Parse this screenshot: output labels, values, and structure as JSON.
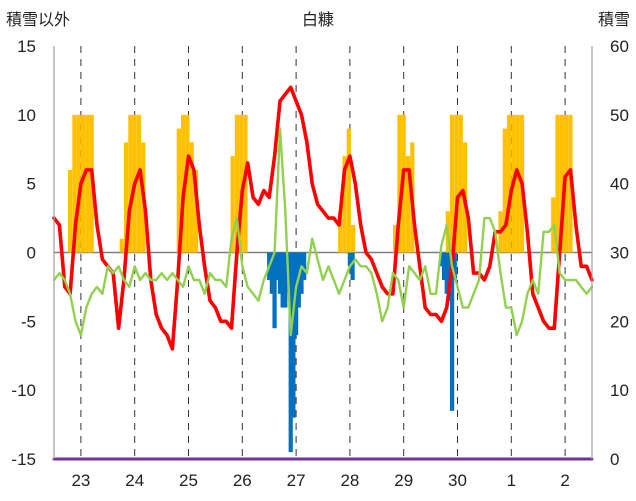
{
  "chart_data": {
    "type": "line",
    "title": "白糠",
    "y_left_label": "積雪以外",
    "y_right_label": "積雪",
    "y_left_ticks": [
      "15",
      "10",
      "5",
      "0",
      "-5",
      "-10",
      "-15"
    ],
    "y_right_ticks": [
      "60",
      "50",
      "40",
      "30",
      "20",
      "10",
      "0"
    ],
    "ylim_left": [
      -15,
      15
    ],
    "ylim_right": [
      0,
      60
    ],
    "x_ticks": [
      "23",
      "24",
      "25",
      "26",
      "27",
      "28",
      "29",
      "30",
      "1",
      "2"
    ],
    "xlim": [
      22.5,
      32.5
    ],
    "grid": "vertical dashed at day centers",
    "legend": "none",
    "series": [
      {
        "kind": "bar",
        "axis": "left",
        "color": "#FFC000",
        "x": [
          22.8,
          22.88,
          22.96,
          23.04,
          23.12,
          23.2,
          23.76,
          23.84,
          23.92,
          24.0,
          24.08,
          24.16,
          24.82,
          24.9,
          24.98,
          25.06,
          25.14,
          25.82,
          25.9,
          25.98,
          26.06,
          27.82,
          27.9,
          27.98,
          28.06,
          28.84,
          28.92,
          29.0,
          29.08,
          29.16,
          29.82,
          29.9,
          29.98,
          30.06,
          30.14,
          30.8,
          30.88,
          30.96,
          31.04,
          31.12,
          31.2,
          31.78,
          31.86,
          31.94,
          32.02,
          32.1
        ],
        "values": [
          6,
          10,
          10,
          10,
          10,
          10,
          1,
          8,
          10,
          10,
          10,
          8,
          9,
          10,
          10,
          8,
          6,
          7,
          10,
          10,
          10,
          3,
          7,
          9,
          2,
          2,
          10,
          10,
          7,
          8,
          3,
          10,
          10,
          10,
          8,
          3,
          9,
          10,
          10,
          10,
          10,
          4,
          10,
          10,
          10,
          10
        ]
      },
      {
        "kind": "bar",
        "axis": "left",
        "color": "#0070C0",
        "x": [
          26.5,
          26.55,
          26.6,
          26.65,
          26.7,
          26.75,
          26.8,
          26.85,
          26.9,
          26.95,
          27.0,
          27.05,
          27.1,
          27.15,
          28.0,
          28.05,
          29.7,
          29.75,
          29.8,
          29.85,
          29.9,
          29.95
        ],
        "values": [
          -2,
          -3,
          -5.5,
          -2,
          -3,
          -4,
          -4,
          -2,
          -14.5,
          -12,
          -6,
          -4,
          -3,
          -2,
          -1,
          -2,
          -1,
          -2,
          -3,
          -3.5,
          -11.5,
          -2
        ]
      },
      {
        "kind": "line",
        "axis": "left",
        "color": "#FF0000",
        "x": [
          22.5,
          22.6,
          22.7,
          22.8,
          22.9,
          23.0,
          23.1,
          23.2,
          23.3,
          23.4,
          23.5,
          23.6,
          23.7,
          23.8,
          23.9,
          24.0,
          24.1,
          24.2,
          24.3,
          24.4,
          24.5,
          24.6,
          24.7,
          24.8,
          24.9,
          25.0,
          25.1,
          25.2,
          25.3,
          25.4,
          25.5,
          25.6,
          25.7,
          25.8,
          25.9,
          26.0,
          26.1,
          26.2,
          26.3,
          26.4,
          26.5,
          26.6,
          26.7,
          26.8,
          26.9,
          27.0,
          27.1,
          27.2,
          27.3,
          27.4,
          27.5,
          27.6,
          27.7,
          27.8,
          27.9,
          28.0,
          28.1,
          28.2,
          28.3,
          28.4,
          28.5,
          28.6,
          28.7,
          28.8,
          28.9,
          29.0,
          29.1,
          29.2,
          29.3,
          29.4,
          29.5,
          29.6,
          29.7,
          29.8,
          29.9,
          30.0,
          30.1,
          30.2,
          30.3,
          30.4,
          30.5,
          30.6,
          30.7,
          30.8,
          30.9,
          31.0,
          31.1,
          31.2,
          31.3,
          31.4,
          31.5,
          31.6,
          31.7,
          31.8,
          31.9,
          32.0,
          32.1,
          32.2,
          32.3,
          32.4,
          32.5
        ],
        "values": [
          2.5,
          2,
          -2.5,
          -3,
          2,
          5,
          6,
          6,
          2,
          -0.5,
          -1,
          -1.5,
          -5.5,
          -2,
          3,
          5,
          6,
          3,
          -2,
          -4.5,
          -5.5,
          -6,
          -7,
          -2,
          4,
          7,
          6,
          2,
          -1,
          -3.5,
          -4,
          -5,
          -5,
          -5.5,
          0,
          4.5,
          6.5,
          4,
          3.5,
          4.5,
          4,
          7,
          11,
          11.5,
          12,
          11,
          10,
          8,
          5,
          3.5,
          3,
          2.5,
          2.5,
          2,
          6,
          7,
          5,
          2,
          0,
          -0.5,
          -1.5,
          -2.5,
          -3,
          -3,
          2,
          6,
          6,
          2,
          -1,
          -4,
          -4.5,
          -4.5,
          -5,
          -4,
          -1,
          4,
          4.5,
          2.5,
          -1.5,
          -1.5,
          -2,
          -1,
          1.5,
          1.5,
          2,
          4.5,
          6,
          5,
          1.5,
          -3,
          -4,
          -5,
          -5.5,
          -5.5,
          0,
          5.5,
          6,
          2,
          -1,
          -1,
          -2
        ]
      },
      {
        "kind": "line",
        "axis": "left",
        "color": "#92D050",
        "x": [
          22.5,
          22.6,
          22.7,
          22.8,
          22.9,
          23.0,
          23.1,
          23.2,
          23.3,
          23.4,
          23.5,
          23.6,
          23.7,
          23.8,
          23.9,
          24.0,
          24.1,
          24.2,
          24.3,
          24.4,
          24.5,
          24.6,
          24.7,
          24.8,
          24.9,
          25.0,
          25.1,
          25.2,
          25.3,
          25.4,
          25.5,
          25.6,
          25.7,
          25.8,
          25.9,
          26.0,
          26.1,
          26.2,
          26.3,
          26.4,
          26.5,
          26.6,
          26.7,
          26.8,
          26.9,
          27.0,
          27.1,
          27.2,
          27.3,
          27.4,
          27.5,
          27.6,
          27.7,
          27.8,
          27.9,
          28.0,
          28.1,
          28.2,
          28.3,
          28.4,
          28.5,
          28.6,
          28.7,
          28.8,
          28.9,
          29.0,
          29.1,
          29.2,
          29.3,
          29.4,
          29.5,
          29.6,
          29.7,
          29.8,
          29.9,
          30.0,
          30.1,
          30.2,
          30.3,
          30.4,
          30.5,
          30.6,
          30.7,
          30.8,
          30.9,
          31.0,
          31.1,
          31.2,
          31.3,
          31.4,
          31.5,
          31.6,
          31.7,
          31.8,
          31.9,
          32.0,
          32.1,
          32.2,
          32.3,
          32.4,
          32.5
        ],
        "values": [
          -2,
          -1.5,
          -2,
          -3,
          -5,
          -6,
          -4,
          -3,
          -2.5,
          -3,
          -1,
          -1.5,
          -1,
          -2,
          -2.5,
          -1,
          -2,
          -1.5,
          -2,
          -2,
          -1.5,
          -2,
          -1.5,
          -2,
          -2.5,
          -1,
          -2,
          -2,
          -3,
          -1.5,
          -2,
          -2,
          -2.5,
          1,
          2.5,
          -1,
          -2.5,
          -3,
          -3.5,
          -2,
          -1,
          0,
          9,
          3,
          -6,
          -2.5,
          -1,
          -1.5,
          1,
          -0.5,
          -2,
          -1,
          -2,
          -3,
          -2,
          -1,
          -0.5,
          -1,
          -1,
          -1.5,
          -3,
          -5,
          -4,
          -1.5,
          -2,
          -4,
          -1,
          -1.5,
          -2,
          -1,
          -3,
          -3,
          0.5,
          2,
          -1,
          -2.5,
          -4,
          -4,
          -3,
          -2,
          2.5,
          2.5,
          1.5,
          -1.5,
          -4,
          -4,
          -6,
          -5,
          -3,
          -2,
          -3,
          1.5,
          1.5,
          2,
          -1.5,
          -2,
          -2,
          -2,
          -2.5,
          -3,
          -2.5
        ]
      },
      {
        "kind": "line",
        "axis": "left",
        "color": "#7030A0",
        "x": [
          22.5,
          32.5
        ],
        "values": [
          -15,
          -15
        ]
      }
    ]
  }
}
